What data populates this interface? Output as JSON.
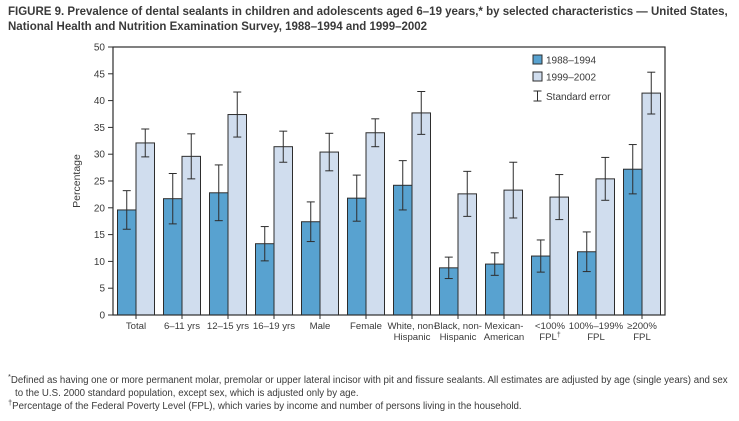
{
  "figure": {
    "title": "FIGURE 9. Prevalence of dental sealants in children and adolescents aged 6–19 years,* by selected characteristics — United States, National Health and Nutrition Examination Survey, 1988–1994 and 1999–2002"
  },
  "chart_data": {
    "type": "bar",
    "title": "",
    "xlabel": "",
    "ylabel": "Percentage",
    "ylim": [
      0,
      50
    ],
    "yticks": [
      0,
      5,
      10,
      15,
      20,
      25,
      30,
      35,
      40,
      45,
      50
    ],
    "grid": false,
    "legend_position": "top-right-inside",
    "legend_error_label": "Standard error",
    "error_bars": "standard error",
    "categories": [
      {
        "label": "Total",
        "lines": [
          "Total"
        ]
      },
      {
        "label": "6–11 yrs",
        "lines": [
          "6–11 yrs"
        ]
      },
      {
        "label": "12–15 yrs",
        "lines": [
          "12–15 yrs"
        ]
      },
      {
        "label": "16–19 yrs",
        "lines": [
          "16–19 yrs"
        ]
      },
      {
        "label": "Male",
        "lines": [
          "Male"
        ]
      },
      {
        "label": "Female",
        "lines": [
          "Female"
        ]
      },
      {
        "label": "White, non-Hispanic",
        "lines": [
          "White, non-",
          "Hispanic"
        ]
      },
      {
        "label": "Black, non-Hispanic",
        "lines": [
          "Black, non-",
          "Hispanic"
        ]
      },
      {
        "label": "Mexican-American",
        "lines": [
          "Mexican-",
          "American"
        ]
      },
      {
        "label": "<100% FPL†",
        "lines": [
          "<100%",
          "FPL"
        ],
        "sup": "†"
      },
      {
        "label": "100%–199% FPL",
        "lines": [
          "100%–199%",
          "FPL"
        ]
      },
      {
        "label": "≥200% FPL",
        "lines": [
          "≥200%",
          "FPL"
        ]
      }
    ],
    "series": [
      {
        "name": "1988–1994",
        "color": "#58a2d0",
        "values": [
          19.6,
          21.7,
          22.8,
          13.3,
          17.4,
          21.8,
          24.2,
          8.8,
          9.5,
          11.0,
          11.8,
          27.2
        ],
        "standard_errors": [
          3.6,
          4.7,
          5.2,
          3.2,
          3.7,
          4.3,
          4.6,
          2.0,
          2.1,
          3.0,
          3.7,
          4.6
        ]
      },
      {
        "name": "1999–2002",
        "color": "#d0ddee",
        "values": [
          32.1,
          29.6,
          37.4,
          31.4,
          30.4,
          34.0,
          37.7,
          22.6,
          23.3,
          22.0,
          25.4,
          41.4
        ],
        "standard_errors": [
          2.6,
          4.2,
          4.2,
          2.9,
          3.5,
          2.6,
          4.0,
          4.2,
          5.2,
          4.2,
          4.0,
          3.9
        ]
      }
    ]
  },
  "footnotes": [
    {
      "marker": "*",
      "text": "Defined as having one or more permanent molar, premolar or upper lateral incisor with pit and fissure sealants.  All estimates are adjusted by age (single years) and sex to the U.S. 2000 standard population, except sex, which is adjusted only by age."
    },
    {
      "marker": "†",
      "text": "Percentage of the Federal Poverty Level (FPL), which varies by income and number of persons living in the household."
    }
  ],
  "colors": {
    "axis": "#2d2d2d",
    "text": "#3a3a3a",
    "background": "#ffffff"
  }
}
